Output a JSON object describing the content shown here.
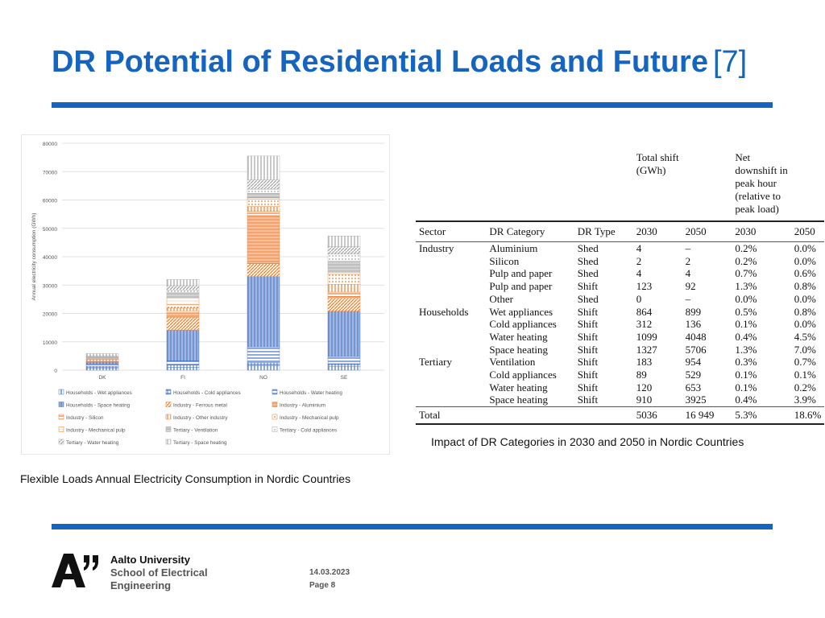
{
  "slide": {
    "title": "DR Potential of Residential Loads and Future",
    "title_ref": "[7]",
    "left_caption": "Flexible  Loads Annual Electricity Consumption in Nordic Countries",
    "right_caption": "Impact of DR Categories in 2030 and 2050 in Nordic Countries"
  },
  "footer": {
    "university": "Aalto University",
    "school_line1": "School of Electrical",
    "school_line2": "Engineering",
    "date": "14.03.2023",
    "page": "Page 8"
  },
  "chart_data": {
    "type": "bar",
    "stacked": true,
    "categories": [
      "DK",
      "FI",
      "NO",
      "SE"
    ],
    "ylabel": "Annual electricity consumption (GWh)",
    "ylim": [
      0,
      80000
    ],
    "yticks": [
      0,
      10000,
      20000,
      30000,
      40000,
      50000,
      60000,
      70000,
      80000
    ],
    "grid": true,
    "legend_position": "bottom",
    "series": [
      {
        "name": "Households - Wet appliances",
        "color": "#4472c4",
        "pattern": "vertical",
        "values": [
          800,
          1000,
          1500,
          1200
        ]
      },
      {
        "name": "Households - Cold appliances",
        "color": "#4472c4",
        "pattern": "grid",
        "values": [
          600,
          800,
          1200,
          1100
        ]
      },
      {
        "name": "Households - Water heating",
        "color": "#4472c4",
        "pattern": "horizontal",
        "values": [
          700,
          1500,
          5500,
          2500
        ]
      },
      {
        "name": "Households - Space heating",
        "color": "#4472c4",
        "pattern": "dense-vertical",
        "values": [
          700,
          10800,
          24800,
          16000
        ]
      },
      {
        "name": "Industry - Ferrous metal",
        "color": "#ed7d31",
        "pattern": "diagonal",
        "values": [
          100,
          4500,
          4500,
          4500
        ]
      },
      {
        "name": "Industry - Aluminium",
        "color": "#ed7d31",
        "pattern": "dense-horizontal",
        "values": [
          100,
          1500,
          17000,
          700
        ]
      },
      {
        "name": "Industry - Silicon",
        "color": "#ed7d31",
        "pattern": "horizontal",
        "values": [
          100,
          800,
          1500,
          1500
        ]
      },
      {
        "name": "Industry - Other industry",
        "color": "#ed7d31",
        "pattern": "vertical",
        "values": [
          600,
          1000,
          1700,
          2800
        ]
      },
      {
        "name": "Industry - Mechanical pulp",
        "color": "#ed7d31",
        "pattern": "dots",
        "values": [
          100,
          1200,
          2600,
          3500
        ]
      },
      {
        "name": "Industry - Mechanical pulp",
        "color": "#ed7d31",
        "pattern": "light",
        "values": [
          50,
          2200,
          500,
          600
        ]
      },
      {
        "name": "Tertiary - Ventilation",
        "color": "#a5a5a5",
        "pattern": "dense-horizontal",
        "values": [
          700,
          2000,
          1500,
          4000
        ]
      },
      {
        "name": "Tertiary - Cold appliances",
        "color": "#a5a5a5",
        "pattern": "dots",
        "values": [
          200,
          1000,
          1500,
          2500
        ]
      },
      {
        "name": "Tertiary - Water heating",
        "color": "#a5a5a5",
        "pattern": "diagonal",
        "values": [
          300,
          1500,
          3400,
          2600
        ]
      },
      {
        "name": "Tertiary - Space heating",
        "color": "#a5a5a5",
        "pattern": "vertical",
        "values": [
          800,
          2200,
          8300,
          3800
        ]
      }
    ]
  },
  "table": {
    "header_top": [
      "",
      "",
      "",
      "Total shift\n(GWh)",
      "",
      "Net\ndownshift in\npeak hour\n(relative to\npeak load)",
      ""
    ],
    "columns": [
      "Sector",
      "DR Category",
      "DR Type",
      "2030",
      "2050",
      "2030",
      "2050"
    ],
    "rows": [
      [
        "Industry",
        "Aluminium",
        "Shed",
        "4",
        "–",
        "0.2%",
        "0.0%"
      ],
      [
        "",
        "Silicon",
        "Shed",
        "2",
        "2",
        "0.2%",
        "0.0%"
      ],
      [
        "",
        "Pulp and paper",
        "Shed",
        "4",
        "4",
        "0.7%",
        "0.6%"
      ],
      [
        "",
        "Pulp and paper",
        "Shift",
        "123",
        "92",
        "1.3%",
        "0.8%"
      ],
      [
        "",
        "Other",
        "Shed",
        "0",
        "–",
        "0.0%",
        "0.0%"
      ],
      [
        "Households",
        "Wet appliances",
        "Shift",
        "864",
        "899",
        "0.5%",
        "0.8%"
      ],
      [
        "",
        "Cold appliances",
        "Shift",
        "312",
        "136",
        "0.1%",
        "0.0%"
      ],
      [
        "",
        "Water heating",
        "Shift",
        "1099",
        "4048",
        "0.4%",
        "4.5%"
      ],
      [
        "",
        "Space heating",
        "Shift",
        "1327",
        "5706",
        "1.3%",
        "7.0%"
      ],
      [
        "Tertiary",
        "Ventilation",
        "Shift",
        "183",
        "954",
        "0.3%",
        "0.7%"
      ],
      [
        "",
        "Cold appliances",
        "Shift",
        "89",
        "529",
        "0.1%",
        "0.1%"
      ],
      [
        "",
        "Water heating",
        "Shift",
        "120",
        "653",
        "0.1%",
        "0.2%"
      ],
      [
        "",
        "Space heating",
        "Shift",
        "910",
        "3925",
        "0.4%",
        "3.9%"
      ]
    ],
    "total": [
      "Total",
      "",
      "",
      "5036",
      "16 949",
      "5.3%",
      "18.6%"
    ]
  },
  "colors": {
    "title": "#1565c0",
    "rule": "#1565c0",
    "household": "#4472c4",
    "industry": "#ed7d31",
    "tertiary": "#a5a5a5"
  }
}
